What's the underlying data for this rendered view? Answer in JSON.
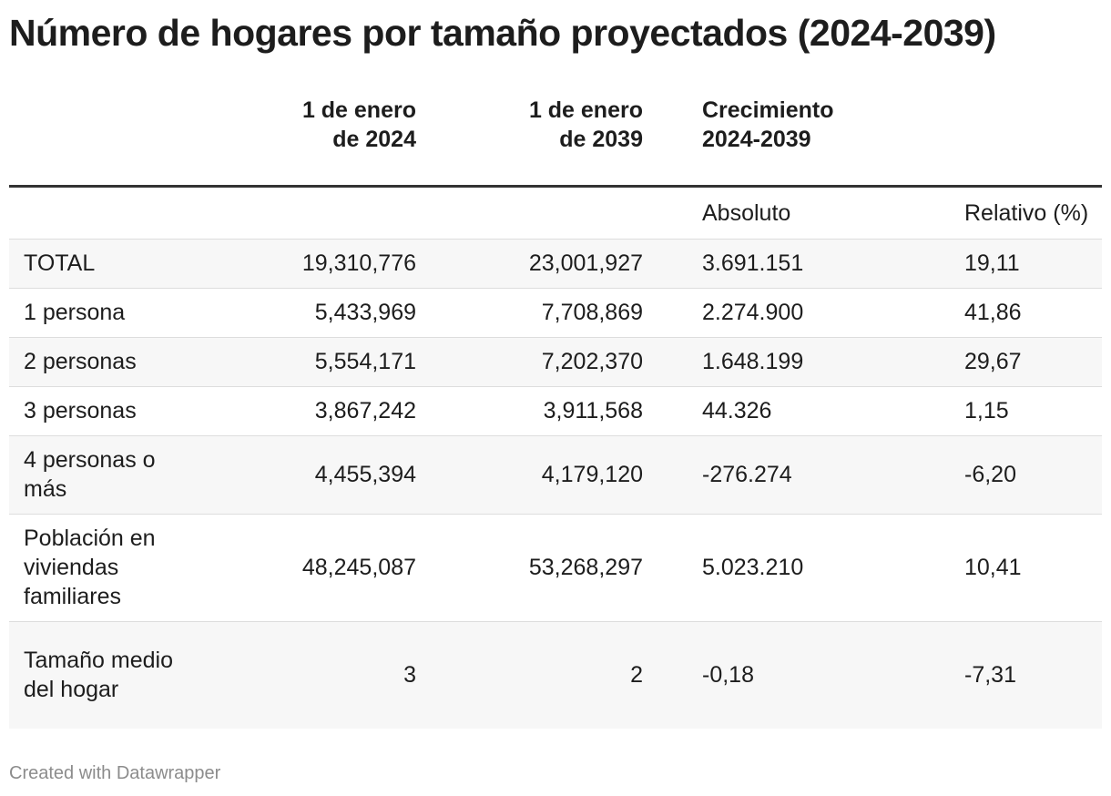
{
  "title": "Número de hogares por tamaño proyectados (2024-2039)",
  "footer": "Created with Datawrapper",
  "chart_data": {
    "type": "table",
    "title": "Número de hogares por tamaño proyectados (2024-2039)",
    "columns": [
      {
        "line1": "",
        "line2": ""
      },
      {
        "line1": "1 de enero",
        "line2": "de 2024"
      },
      {
        "line1": "1 de enero",
        "line2": "de 2039"
      },
      {
        "line1": "Crecimiento",
        "line2": "2024-2039"
      },
      {
        "line1": "",
        "line2": ""
      }
    ],
    "subheaders": [
      "",
      "",
      "",
      "Absoluto",
      "Relativo (%)"
    ],
    "rows": [
      [
        "TOTAL",
        "19,310,776",
        "23,001,927",
        "3.691.151",
        "19,11"
      ],
      [
        "1 persona",
        "5,433,969",
        "7,708,869",
        "2.274.900",
        "41,86"
      ],
      [
        "2 personas",
        "5,554,171",
        "7,202,370",
        "1.648.199",
        "29,67"
      ],
      [
        "3 personas",
        "3,867,242",
        "3,911,568",
        "44.326",
        "1,15"
      ],
      [
        "4 personas o más",
        "4,455,394",
        "4,179,120",
        "-276.274",
        "-6,20"
      ],
      [
        "Población en viviendas familiares",
        "48,245,087",
        "53,268,297",
        "5.023.210",
        "10,41"
      ],
      [
        "Tamaño medio del hogar",
        "3",
        "2",
        "-0,18",
        "-7,31"
      ]
    ]
  }
}
